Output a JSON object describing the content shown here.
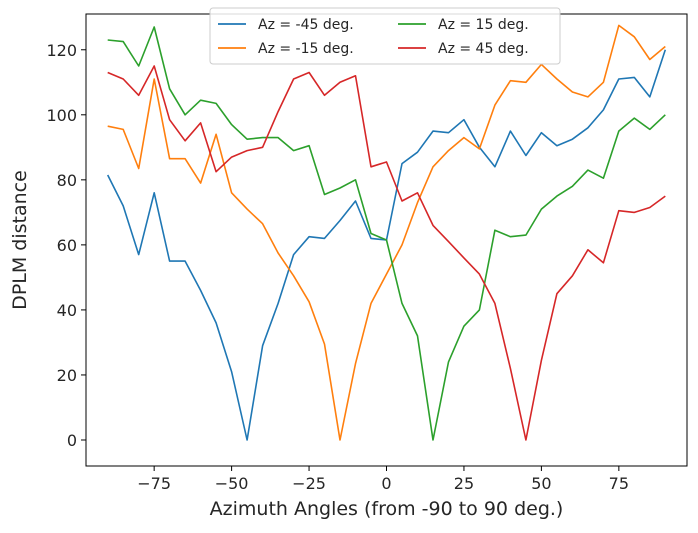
{
  "chart_data": {
    "type": "line",
    "title": "",
    "xlabel": "Azimuth Angles (from -90 to 90 deg.)",
    "ylabel": "DPLM distance",
    "xlim": [
      -97,
      97
    ],
    "ylim": [
      -8,
      131
    ],
    "xticks": [
      -75,
      -50,
      -25,
      0,
      25,
      50,
      75
    ],
    "yticks": [
      0,
      20,
      40,
      60,
      80,
      100,
      120
    ],
    "xtick_labels": [
      "−75",
      "−50",
      "−25",
      "0",
      "25",
      "50",
      "75"
    ],
    "ytick_labels": [
      "0",
      "20",
      "40",
      "60",
      "80",
      "100",
      "120"
    ],
    "grid": false,
    "legend_location": "top-center",
    "legend_columns": 2,
    "x": [
      -90,
      -85,
      -80,
      -75,
      -70,
      -65,
      -60,
      -55,
      -50,
      -45,
      -40,
      -35,
      -30,
      -25,
      -20,
      -15,
      -10,
      -5,
      0,
      5,
      10,
      15,
      20,
      25,
      30,
      35,
      40,
      45,
      50,
      55,
      60,
      65,
      70,
      75,
      80,
      85,
      90
    ],
    "series": [
      {
        "name": "Az = -45 deg.",
        "color": "#1f77b4",
        "values": [
          81.5,
          72,
          57,
          76,
          55,
          55,
          46,
          36,
          21,
          0,
          29,
          42,
          57,
          62.5,
          62,
          67.5,
          73.5,
          62,
          61.5,
          85,
          88.5,
          95,
          94.5,
          98.5,
          90,
          84,
          95,
          87.5,
          94.5,
          90.5,
          92.5,
          96,
          101.5,
          111,
          111.5,
          105.5,
          120
        ]
      },
      {
        "name": "Az = -15 deg.",
        "color": "#ff7f0e",
        "values": [
          96.5,
          95.5,
          83.5,
          111,
          86.5,
          86.5,
          79,
          94,
          76,
          71,
          66.5,
          57.5,
          50.5,
          42.5,
          29.5,
          0,
          23.5,
          42,
          51,
          60,
          73,
          84,
          89,
          93,
          89.5,
          103,
          110.5,
          110,
          115.5,
          111,
          107,
          105.5,
          110,
          127.5,
          124,
          117,
          121
        ]
      },
      {
        "name": "Az = 15 deg.",
        "color": "#2ca02c",
        "values": [
          123,
          122.5,
          115,
          127,
          108,
          100,
          104.5,
          103.5,
          97,
          92.5,
          93,
          93,
          89,
          90.5,
          75.5,
          77.5,
          80,
          63.5,
          61.5,
          42,
          32,
          0,
          24,
          35,
          40,
          64.5,
          62.5,
          63,
          71,
          75,
          78,
          83,
          80.5,
          95,
          99,
          95.5,
          100
        ]
      },
      {
        "name": "Az = 45 deg.",
        "color": "#d62728",
        "values": [
          113,
          111,
          106,
          115,
          98.5,
          92,
          97.5,
          82.5,
          87,
          89,
          90,
          101,
          111,
          113,
          106,
          110,
          112,
          84,
          85.5,
          73.5,
          76,
          66,
          61,
          56,
          51,
          42,
          22,
          0,
          24.5,
          45,
          50.5,
          58.5,
          54.5,
          70.5,
          70,
          71.5,
          75
        ]
      }
    ]
  }
}
